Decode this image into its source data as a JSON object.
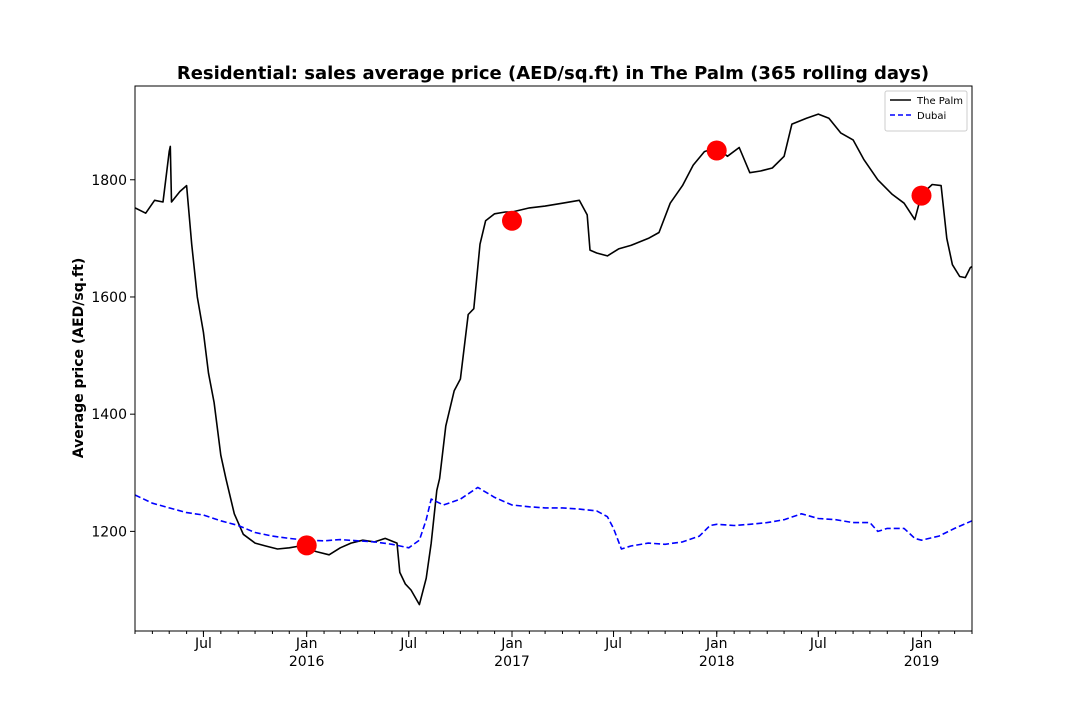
{
  "chart_data": {
    "type": "line",
    "title": "Residential: sales average price (AED/sq.ft) in The Palm (365 rolling days)",
    "xlabel": "",
    "ylabel": "Average price (AED/sq.ft)",
    "xlim": [
      "2015-03-01",
      "2019-04-01"
    ],
    "ylim": [
      1030,
      1960
    ],
    "yticks": [
      1200,
      1400,
      1600,
      1800
    ],
    "xticks": [
      {
        "date": "2015-07-01",
        "label": "Jul",
        "sublabel": ""
      },
      {
        "date": "2016-01-01",
        "label": "Jan",
        "sublabel": "2016"
      },
      {
        "date": "2016-07-01",
        "label": "Jul",
        "sublabel": ""
      },
      {
        "date": "2017-01-01",
        "label": "Jan",
        "sublabel": "2017"
      },
      {
        "date": "2017-07-01",
        "label": "Jul",
        "sublabel": ""
      },
      {
        "date": "2018-01-01",
        "label": "Jan",
        "sublabel": "2018"
      },
      {
        "date": "2018-07-01",
        "label": "Jul",
        "sublabel": ""
      },
      {
        "date": "2019-01-01",
        "label": "Jan",
        "sublabel": "2019"
      }
    ],
    "legend": {
      "position": "top-right"
    },
    "grid": false,
    "series": [
      {
        "name": "The Palm",
        "color": "#000000",
        "dash": "solid",
        "points": [
          [
            "2015-03-01",
            1752
          ],
          [
            "2015-03-20",
            1743
          ],
          [
            "2015-04-05",
            1765
          ],
          [
            "2015-04-20",
            1762
          ],
          [
            "2015-05-01",
            1848
          ],
          [
            "2015-05-03",
            1857
          ],
          [
            "2015-05-05",
            1762
          ],
          [
            "2015-05-20",
            1780
          ],
          [
            "2015-06-01",
            1790
          ],
          [
            "2015-06-10",
            1690
          ],
          [
            "2015-06-20",
            1600
          ],
          [
            "2015-07-01",
            1540
          ],
          [
            "2015-07-10",
            1470
          ],
          [
            "2015-07-20",
            1420
          ],
          [
            "2015-08-01",
            1330
          ],
          [
            "2015-08-10",
            1290
          ],
          [
            "2015-08-25",
            1230
          ],
          [
            "2015-09-10",
            1195
          ],
          [
            "2015-10-01",
            1180
          ],
          [
            "2015-10-20",
            1175
          ],
          [
            "2015-11-10",
            1170
          ],
          [
            "2015-12-01",
            1172
          ],
          [
            "2015-12-20",
            1175
          ],
          [
            "2016-01-01",
            1170
          ],
          [
            "2016-01-20",
            1165
          ],
          [
            "2016-02-10",
            1160
          ],
          [
            "2016-03-01",
            1172
          ],
          [
            "2016-03-20",
            1180
          ],
          [
            "2016-04-10",
            1185
          ],
          [
            "2016-05-01",
            1182
          ],
          [
            "2016-05-20",
            1188
          ],
          [
            "2016-06-10",
            1180
          ],
          [
            "2016-06-15",
            1130
          ],
          [
            "2016-06-25",
            1110
          ],
          [
            "2016-07-05",
            1100
          ],
          [
            "2016-07-20",
            1075
          ],
          [
            "2016-08-01",
            1120
          ],
          [
            "2016-08-10",
            1180
          ],
          [
            "2016-08-20",
            1270
          ],
          [
            "2016-08-25",
            1290
          ],
          [
            "2016-09-05",
            1380
          ],
          [
            "2016-09-20",
            1440
          ],
          [
            "2016-10-01",
            1460
          ],
          [
            "2016-10-15",
            1570
          ],
          [
            "2016-10-25",
            1580
          ],
          [
            "2016-11-05",
            1690
          ],
          [
            "2016-11-15",
            1730
          ],
          [
            "2016-12-01",
            1742
          ],
          [
            "2016-12-20",
            1745
          ],
          [
            "2017-01-01",
            1745
          ],
          [
            "2017-02-01",
            1752
          ],
          [
            "2017-03-01",
            1755
          ],
          [
            "2017-04-01",
            1760
          ],
          [
            "2017-05-01",
            1765
          ],
          [
            "2017-05-15",
            1740
          ],
          [
            "2017-05-20",
            1680
          ],
          [
            "2017-06-01",
            1675
          ],
          [
            "2017-06-20",
            1670
          ],
          [
            "2017-07-10",
            1682
          ],
          [
            "2017-08-01",
            1688
          ],
          [
            "2017-09-01",
            1700
          ],
          [
            "2017-09-20",
            1710
          ],
          [
            "2017-10-10",
            1760
          ],
          [
            "2017-11-01",
            1790
          ],
          [
            "2017-11-20",
            1825
          ],
          [
            "2017-12-10",
            1848
          ],
          [
            "2018-01-01",
            1855
          ],
          [
            "2018-01-20",
            1840
          ],
          [
            "2018-02-10",
            1855
          ],
          [
            "2018-03-01",
            1812
          ],
          [
            "2018-03-20",
            1815
          ],
          [
            "2018-04-10",
            1820
          ],
          [
            "2018-05-01",
            1840
          ],
          [
            "2018-05-15",
            1895
          ],
          [
            "2018-06-10",
            1905
          ],
          [
            "2018-07-01",
            1912
          ],
          [
            "2018-07-20",
            1905
          ],
          [
            "2018-08-10",
            1880
          ],
          [
            "2018-09-01",
            1868
          ],
          [
            "2018-09-20",
            1835
          ],
          [
            "2018-10-15",
            1800
          ],
          [
            "2018-11-10",
            1775
          ],
          [
            "2018-12-01",
            1760
          ],
          [
            "2018-12-20",
            1732
          ],
          [
            "2019-01-01",
            1775
          ],
          [
            "2019-01-20",
            1792
          ],
          [
            "2019-02-05",
            1790
          ],
          [
            "2019-02-15",
            1700
          ],
          [
            "2019-02-25",
            1655
          ],
          [
            "2019-03-10",
            1635
          ],
          [
            "2019-03-20",
            1633
          ],
          [
            "2019-03-29",
            1650
          ],
          [
            "2019-04-01",
            1652
          ]
        ]
      },
      {
        "name": "Dubai",
        "color": "#0000ff",
        "dash": "dashed",
        "points": [
          [
            "2015-03-01",
            1262
          ],
          [
            "2015-04-01",
            1248
          ],
          [
            "2015-05-01",
            1240
          ],
          [
            "2015-06-01",
            1232
          ],
          [
            "2015-07-01",
            1228
          ],
          [
            "2015-08-01",
            1218
          ],
          [
            "2015-09-01",
            1210
          ],
          [
            "2015-10-01",
            1198
          ],
          [
            "2015-11-01",
            1192
          ],
          [
            "2015-12-01",
            1188
          ],
          [
            "2016-01-01",
            1185
          ],
          [
            "2016-02-01",
            1184
          ],
          [
            "2016-03-01",
            1186
          ],
          [
            "2016-04-01",
            1184
          ],
          [
            "2016-05-01",
            1182
          ],
          [
            "2016-06-01",
            1178
          ],
          [
            "2016-07-01",
            1172
          ],
          [
            "2016-07-20",
            1185
          ],
          [
            "2016-08-01",
            1220
          ],
          [
            "2016-08-10",
            1255
          ],
          [
            "2016-09-01",
            1245
          ],
          [
            "2016-10-01",
            1255
          ],
          [
            "2016-11-01",
            1275
          ],
          [
            "2016-12-01",
            1258
          ],
          [
            "2017-01-01",
            1245
          ],
          [
            "2017-02-01",
            1242
          ],
          [
            "2017-03-01",
            1240
          ],
          [
            "2017-04-01",
            1240
          ],
          [
            "2017-05-01",
            1238
          ],
          [
            "2017-06-01",
            1235
          ],
          [
            "2017-06-20",
            1225
          ],
          [
            "2017-07-01",
            1205
          ],
          [
            "2017-07-15",
            1170
          ],
          [
            "2017-08-01",
            1175
          ],
          [
            "2017-09-01",
            1180
          ],
          [
            "2017-10-01",
            1178
          ],
          [
            "2017-11-01",
            1182
          ],
          [
            "2017-12-01",
            1192
          ],
          [
            "2017-12-20",
            1210
          ],
          [
            "2018-01-01",
            1212
          ],
          [
            "2018-02-01",
            1210
          ],
          [
            "2018-03-01",
            1212
          ],
          [
            "2018-04-01",
            1215
          ],
          [
            "2018-05-01",
            1220
          ],
          [
            "2018-06-01",
            1230
          ],
          [
            "2018-07-01",
            1222
          ],
          [
            "2018-08-01",
            1220
          ],
          [
            "2018-09-01",
            1215
          ],
          [
            "2018-10-01",
            1215
          ],
          [
            "2018-10-15",
            1200
          ],
          [
            "2018-11-01",
            1205
          ],
          [
            "2018-12-01",
            1205
          ],
          [
            "2018-12-20",
            1188
          ],
          [
            "2019-01-01",
            1185
          ],
          [
            "2019-02-01",
            1192
          ],
          [
            "2019-03-01",
            1205
          ],
          [
            "2019-04-01",
            1218
          ]
        ]
      },
      {
        "name": "",
        "color": "#ff0000",
        "type": "markers",
        "points": [
          [
            "2016-01-01",
            1176
          ],
          [
            "2017-01-01",
            1730
          ],
          [
            "2018-01-01",
            1850
          ],
          [
            "2019-01-01",
            1773
          ]
        ]
      }
    ]
  }
}
